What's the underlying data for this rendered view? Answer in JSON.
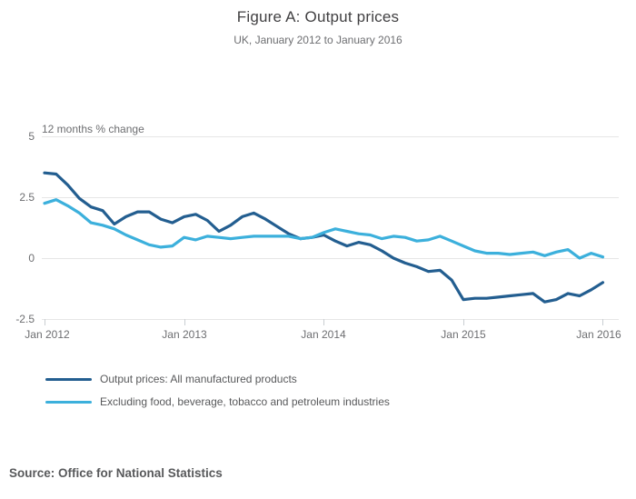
{
  "header": {
    "title": "Figure A: Output prices",
    "subtitle": "UK, January 2012 to January 2016"
  },
  "axis": {
    "unit_label": "12 months % change",
    "y_tick_labels": [
      "5",
      "2.5",
      "0",
      "-2.5"
    ],
    "x_tick_labels": [
      "Jan 2012",
      "Jan 2013",
      "Jan 2014",
      "Jan 2015",
      "Jan 2016"
    ]
  },
  "legend": {
    "items": [
      {
        "label": "Output prices: All manufactured products",
        "color": "#235e90"
      },
      {
        "label": "Excluding food, beverage, tobacco and petroleum industries",
        "color": "#3cb0dc"
      }
    ]
  },
  "footer": {
    "source": "Source: Office for National Statistics"
  },
  "colors": {
    "title_text": "#414042",
    "muted_text": "#6d6e71",
    "legend_text": "#58595b",
    "gridline": "#e6e6e6",
    "tick_mark": "#c9ced2",
    "series_dark": "#235e90",
    "series_light": "#3cb0dc"
  },
  "chart_data": {
    "type": "line",
    "title": "Figure A: Output prices",
    "subtitle": "UK, January 2012 to January 2016",
    "xlabel": "",
    "ylabel": "12 months % change",
    "ylim": [
      -2.5,
      5
    ],
    "y_ticks": [
      5,
      2.5,
      0,
      -2.5
    ],
    "x_tick_labels": [
      "Jan 2012",
      "Jan 2013",
      "Jan 2014",
      "Jan 2015",
      "Jan 2016"
    ],
    "x_frequency": "monthly",
    "x_range": "January 2012 to January 2016",
    "grid": "horizontal-only",
    "legend_position": "bottom-left",
    "series": [
      {
        "name": "Output prices: All manufactured products",
        "color": "#235e90",
        "values": [
          3.5,
          3.45,
          3.0,
          2.45,
          2.1,
          1.95,
          1.4,
          1.7,
          1.9,
          1.9,
          1.6,
          1.45,
          1.7,
          1.8,
          1.55,
          1.1,
          1.35,
          1.7,
          1.85,
          1.6,
          1.3,
          1.0,
          0.8,
          0.85,
          0.95,
          0.7,
          0.5,
          0.65,
          0.55,
          0.3,
          0.0,
          -0.2,
          -0.35,
          -0.55,
          -0.5,
          -0.9,
          -1.7,
          -1.65,
          -1.65,
          -1.6,
          -1.55,
          -1.5,
          -1.45,
          -1.8,
          -1.7,
          -1.45,
          -1.55,
          -1.3,
          -1.0
        ]
      },
      {
        "name": "Excluding food, beverage, tobacco and petroleum industries",
        "color": "#3cb0dc",
        "values": [
          2.25,
          2.4,
          2.15,
          1.85,
          1.45,
          1.35,
          1.2,
          0.95,
          0.75,
          0.55,
          0.45,
          0.5,
          0.85,
          0.75,
          0.9,
          0.85,
          0.8,
          0.85,
          0.9,
          0.9,
          0.9,
          0.9,
          0.8,
          0.85,
          1.05,
          1.2,
          1.1,
          1.0,
          0.95,
          0.8,
          0.9,
          0.85,
          0.7,
          0.75,
          0.9,
          0.7,
          0.5,
          0.3,
          0.2,
          0.2,
          0.15,
          0.2,
          0.25,
          0.1,
          0.25,
          0.35,
          0.0,
          0.2,
          0.05
        ]
      }
    ]
  }
}
